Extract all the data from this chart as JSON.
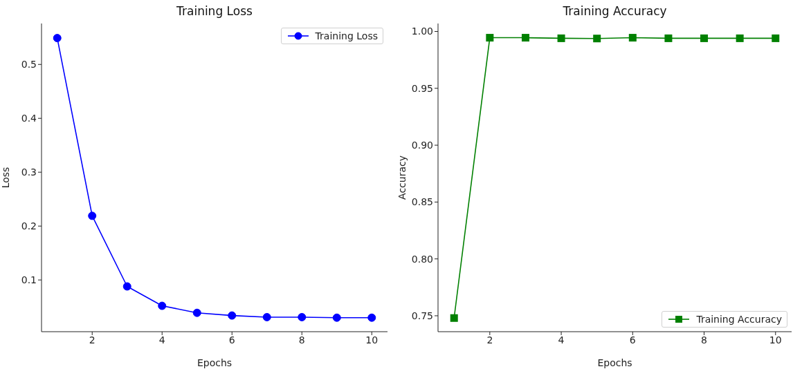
{
  "chart_data": [
    {
      "type": "line",
      "title": "Training Loss",
      "xlabel": "Epochs",
      "ylabel": "Loss",
      "x": [
        1,
        2,
        3,
        4,
        5,
        6,
        7,
        8,
        9,
        10
      ],
      "series": [
        {
          "name": "Training Loss",
          "color": "#0000ff",
          "values": [
            0.549,
            0.219,
            0.088,
            0.052,
            0.039,
            0.034,
            0.031,
            0.031,
            0.03,
            0.03
          ]
        }
      ],
      "xlim": [
        0.55,
        10.45
      ],
      "xticks": [
        2,
        4,
        6,
        8,
        10
      ],
      "ylim": [
        0.004,
        0.576
      ],
      "yticks": [
        0.1,
        0.2,
        0.3,
        0.4,
        0.5
      ],
      "grid": false,
      "legend": "top right",
      "marker": "circle",
      "line_style": "solid"
    },
    {
      "type": "line",
      "title": "Training Accuracy",
      "xlabel": "Epochs",
      "ylabel": "Accuracy",
      "x": [
        1,
        2,
        3,
        4,
        5,
        6,
        7,
        8,
        9,
        10
      ],
      "series": [
        {
          "name": "Training Accuracy",
          "color": "#008000",
          "values": [
            0.748,
            0.9945,
            0.9945,
            0.994,
            0.9938,
            0.9945,
            0.994,
            0.994,
            0.994,
            0.994
          ]
        }
      ],
      "xlim": [
        0.55,
        10.45
      ],
      "xticks": [
        2,
        4,
        6,
        8,
        10
      ],
      "ylim": [
        0.736,
        1.007
      ],
      "yticks": [
        {
          "value": 0.75,
          "label": "0.75"
        },
        {
          "value": 0.8,
          "label": "0.80"
        },
        {
          "value": 0.85,
          "label": "0.85"
        },
        {
          "value": 0.9,
          "label": "0.90"
        },
        {
          "value": 0.95,
          "label": "0.95"
        },
        {
          "value": 1,
          "label": "1.00"
        }
      ],
      "grid": false,
      "legend": "bottom right",
      "marker": "square",
      "line_style": "solid"
    }
  ]
}
